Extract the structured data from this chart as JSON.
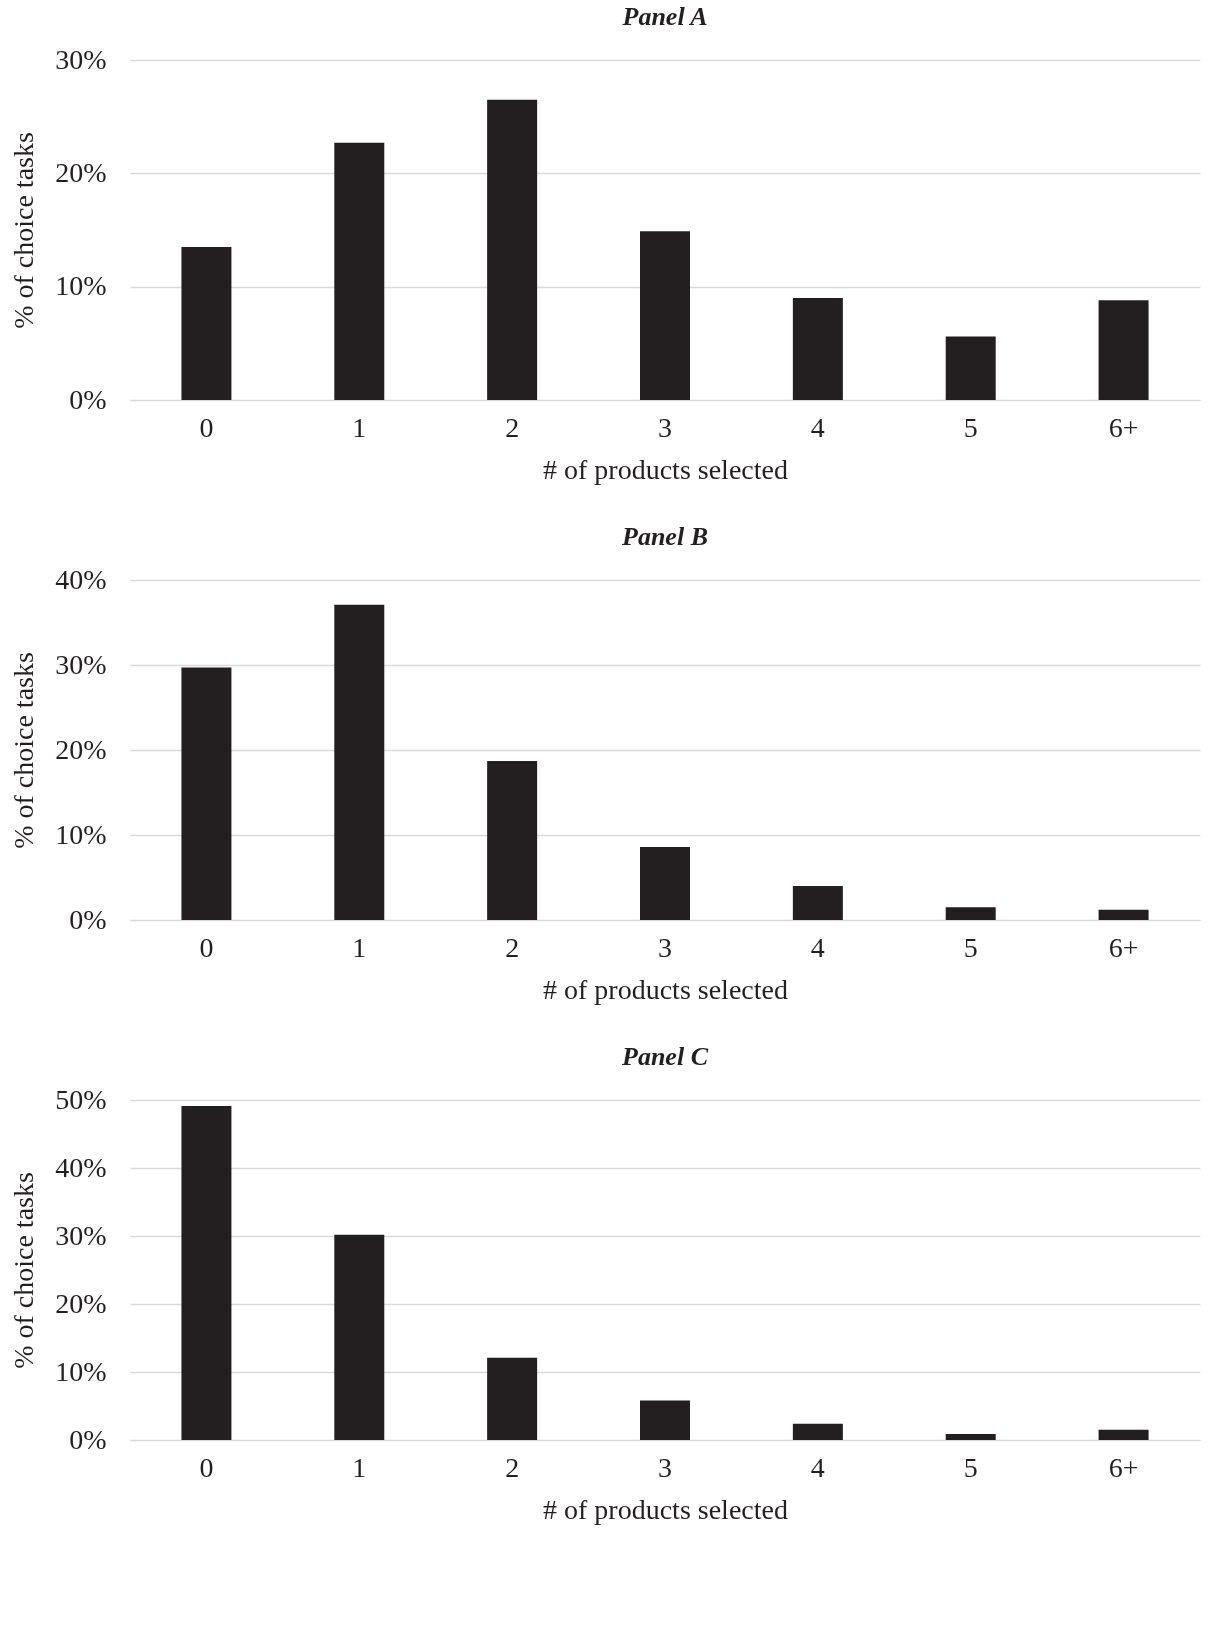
{
  "chart_data": [
    {
      "type": "bar",
      "title": "Panel A",
      "xlabel": "# of products selected",
      "ylabel": "% of choice tasks",
      "categories": [
        "0",
        "1",
        "2",
        "3",
        "4",
        "5",
        "6+"
      ],
      "values": [
        13.5,
        22.7,
        26.5,
        14.9,
        9.0,
        5.6,
        8.8
      ],
      "color": "#231f20",
      "ylim": [
        0,
        30
      ],
      "yticks": [
        {
          "value": 0,
          "label": "0%"
        },
        {
          "value": 10,
          "label": "10%"
        },
        {
          "value": 20,
          "label": "20%"
        },
        {
          "value": 30,
          "label": "30%"
        }
      ],
      "grid": true
    },
    {
      "type": "bar",
      "title": "Panel B",
      "xlabel": "# of products selected",
      "ylabel": "% of choice tasks",
      "categories": [
        "0",
        "1",
        "2",
        "3",
        "4",
        "5",
        "6+"
      ],
      "values": [
        29.7,
        37.1,
        18.7,
        8.6,
        4.0,
        1.5,
        1.2
      ],
      "color": "#231f20",
      "ylim": [
        0,
        40
      ],
      "yticks": [
        {
          "value": 0,
          "label": "0%"
        },
        {
          "value": 10,
          "label": "10%"
        },
        {
          "value": 20,
          "label": "20%"
        },
        {
          "value": 30,
          "label": "30%"
        },
        {
          "value": 40,
          "label": "40%"
        }
      ],
      "grid": true
    },
    {
      "type": "bar",
      "title": "Panel C",
      "xlabel": "# of products selected",
      "ylabel": "% of choice tasks",
      "categories": [
        "0",
        "1",
        "2",
        "3",
        "4",
        "5",
        "6+"
      ],
      "values": [
        49.1,
        30.2,
        12.1,
        5.8,
        2.4,
        0.9,
        1.5
      ],
      "color": "#231f20",
      "ylim": [
        0,
        50
      ],
      "yticks": [
        {
          "value": 0,
          "label": "0%"
        },
        {
          "value": 10,
          "label": "10%"
        },
        {
          "value": 20,
          "label": "20%"
        },
        {
          "value": 30,
          "label": "30%"
        },
        {
          "value": 40,
          "label": "40%"
        },
        {
          "value": 50,
          "label": "50%"
        }
      ],
      "grid": true
    }
  ]
}
